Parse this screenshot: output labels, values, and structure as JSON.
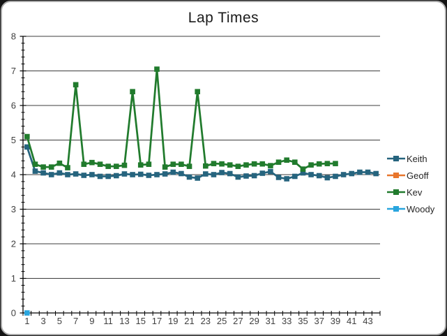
{
  "chart_data": {
    "type": "line",
    "title": "Lap Times",
    "xlabel": "",
    "ylabel": "",
    "x_categories_count": 44,
    "x_tick_labels": [
      "1",
      "3",
      "5",
      "7",
      "9",
      "11",
      "13",
      "15",
      "17",
      "19",
      "21",
      "23",
      "25",
      "27",
      "29",
      "31",
      "33",
      "35",
      "37",
      "39",
      "41",
      "43"
    ],
    "y_tick_labels": [
      "0",
      "1",
      "2",
      "3",
      "4",
      "5",
      "6",
      "7",
      "8"
    ],
    "ylim": [
      0,
      8
    ],
    "y_minor_tick_step": 0.2,
    "grid": "horizontal-major",
    "legend_position": "right",
    "series": [
      {
        "name": "Keith",
        "color": "#26647E",
        "values": [
          4.8,
          4.1,
          4.05,
          4.0,
          4.05,
          4.0,
          4.02,
          3.98,
          4.0,
          3.95,
          3.95,
          3.97,
          4.02,
          4.0,
          4.01,
          3.98,
          4.0,
          4.02,
          4.07,
          4.03,
          3.93,
          3.9,
          4.02,
          4.0,
          4.06,
          4.03,
          3.93,
          3.96,
          3.97,
          4.04,
          4.09,
          3.92,
          3.88,
          3.95,
          4.05,
          4.0,
          3.97,
          3.91,
          3.95,
          4.0,
          4.03,
          4.07,
          4.07,
          4.03
        ]
      },
      {
        "name": "Geoff",
        "color": "#E8762C",
        "values": []
      },
      {
        "name": "Kev",
        "color": "#217B2D",
        "values": [
          5.1,
          4.3,
          4.22,
          4.22,
          4.33,
          4.2,
          6.6,
          4.3,
          4.35,
          4.3,
          4.24,
          4.24,
          4.27,
          6.4,
          4.28,
          4.3,
          7.05,
          4.22,
          4.3,
          4.3,
          4.24,
          6.4,
          4.25,
          4.32,
          4.31,
          4.28,
          4.24,
          4.28,
          4.31,
          4.31,
          4.26,
          4.36,
          4.42,
          4.36,
          4.16,
          4.28,
          4.31,
          4.32,
          4.32
        ]
      },
      {
        "name": "Woody",
        "color": "#29A5DE",
        "values": [
          0
        ]
      }
    ]
  }
}
